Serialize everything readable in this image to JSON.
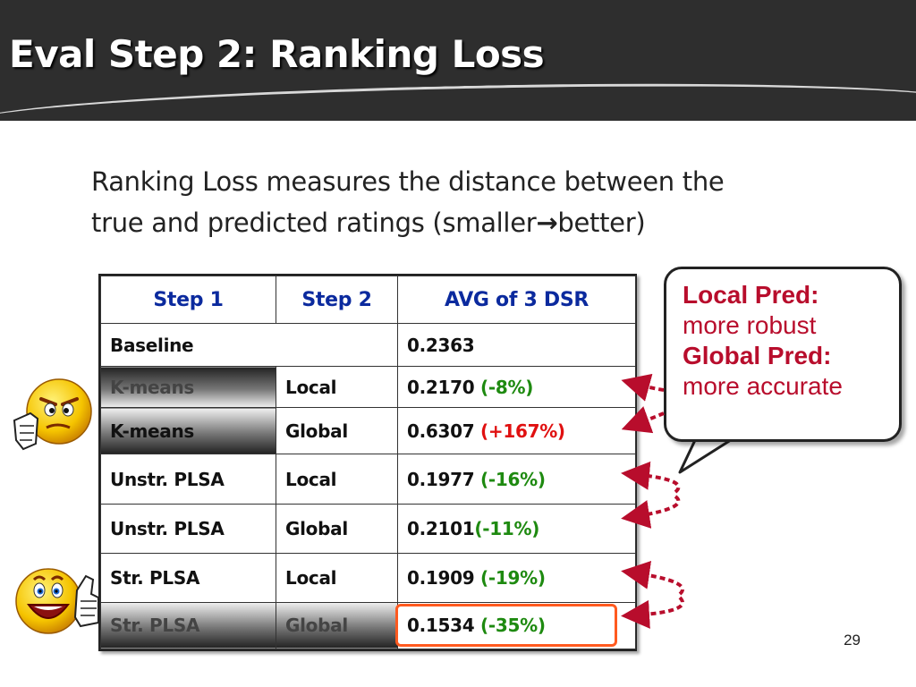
{
  "slide": {
    "title": "Eval Step 2: Ranking Loss",
    "intro_line1": "Ranking Loss measures the distance between the",
    "intro_line2_start": "true and predicted ratings (smaller",
    "intro_arrow": "→",
    "intro_line2_end": "better)",
    "page_number": "29"
  },
  "table": {
    "headers": [
      "Step 1",
      "Step 2",
      "AVG of 3 DSR"
    ],
    "rows": [
      {
        "step1": "Baseline",
        "step2": "",
        "value": "0.2363",
        "change": ""
      },
      {
        "step1": "K-means",
        "step2": "Local",
        "value": "0.2170 ",
        "change": "(-8%)"
      },
      {
        "step1": "K-means",
        "step2": "Global",
        "value": "0.6307 ",
        "change": "(+167%)"
      },
      {
        "step1": "Unstr. PLSA",
        "step2": "Local",
        "value": "0.1977 ",
        "change": "(-16%)"
      },
      {
        "step1": "Unstr. PLSA",
        "step2": "Global",
        "value": "0.2101",
        "change": "(-11%)"
      },
      {
        "step1": "Str. PLSA",
        "step2": "Local",
        "value": "0.1909 ",
        "change": "(-19%)"
      },
      {
        "step1": "Str. PLSA",
        "step2": "Global",
        "value": "0.1534 ",
        "change": "(-35%)"
      }
    ]
  },
  "callout": {
    "line1": "Local Pred:",
    "line2": "more robust",
    "line3": "Global Pred:",
    "line4": "more accurate"
  },
  "icons": {
    "top_face": "angry-thumbs-down-face-icon",
    "bottom_face": "happy-thumbs-up-face-icon"
  },
  "colors": {
    "title_bar": "#2e2e2e",
    "header_text": "#0b2a9e",
    "improvement": "#1e8a10",
    "regression": "#e01010",
    "callout_text": "#b80d2c",
    "highlight_box": "#ff5a1f",
    "arrow": "#b80d2c"
  }
}
